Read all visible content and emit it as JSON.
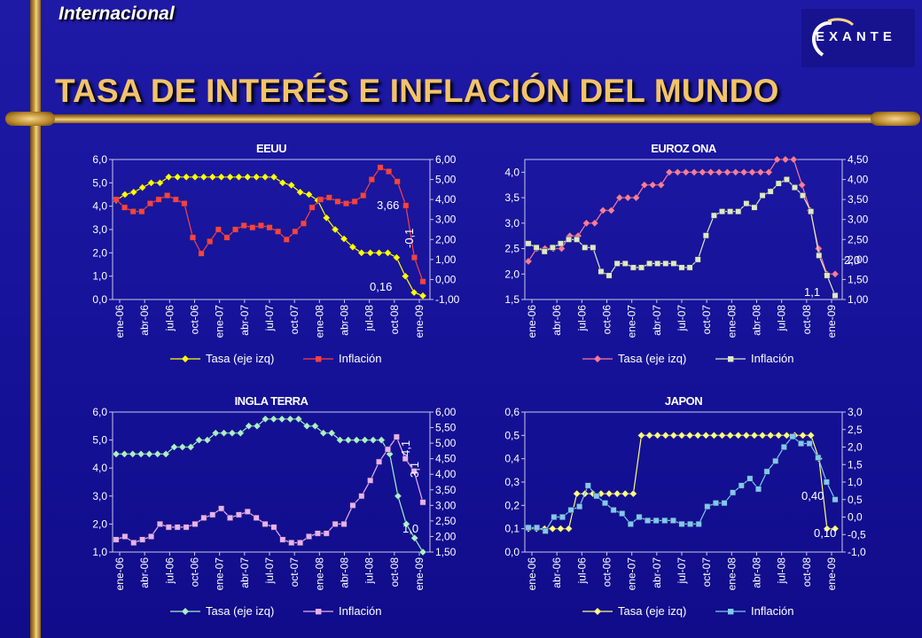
{
  "header": {
    "section_label": "Internacional",
    "title": "TASA DE INTERÉS E INFLACIÓN DEL MUNDO",
    "logo_text": "EXANTE"
  },
  "months": [
    "ene-06",
    "abr-06",
    "jul-06",
    "oct-06",
    "ene-07",
    "abr-07",
    "jul-07",
    "oct-07",
    "ene-08",
    "abr-08",
    "jul-08",
    "oct-08",
    "ene-09"
  ],
  "chart_data": [
    {
      "type": "line",
      "title": "EEUU",
      "ylim_left": [
        0,
        6
      ],
      "yticks_left": [
        "0,0",
        "1,0",
        "2,0",
        "3,0",
        "4,0",
        "5,0",
        "6,0"
      ],
      "ylim_right": [
        -1,
        6
      ],
      "yticks_right": [
        "-1,00",
        "0,00",
        "1,00",
        "2,00",
        "3,00",
        "4,00",
        "5,00",
        "6,00"
      ],
      "series": [
        {
          "name": "Tasa (eje izq)",
          "axis": "left",
          "color": "#ffff00",
          "marker": "diamond",
          "values": [
            4.25,
            4.5,
            4.6,
            4.8,
            5.0,
            5.0,
            5.25,
            5.25,
            5.25,
            5.25,
            5.25,
            5.25,
            5.25,
            5.25,
            5.25,
            5.25,
            5.25,
            5.25,
            5.25,
            5.0,
            4.9,
            4.6,
            4.5,
            4.25,
            3.5,
            3.0,
            2.6,
            2.25,
            2.0,
            2.0,
            2.0,
            2.0,
            1.8,
            1.0,
            0.3,
            0.16
          ]
        },
        {
          "name": "Inflación",
          "axis": "right",
          "color": "#ff4040",
          "marker": "square",
          "values": [
            4.0,
            3.6,
            3.4,
            3.4,
            3.8,
            4.0,
            4.2,
            4.0,
            3.8,
            2.1,
            1.3,
            1.9,
            2.5,
            2.1,
            2.5,
            2.7,
            2.6,
            2.7,
            2.6,
            2.4,
            2.0,
            2.4,
            2.8,
            3.6,
            4.0,
            4.1,
            3.9,
            3.8,
            3.9,
            4.2,
            5.0,
            5.6,
            5.4,
            4.9,
            3.7,
            1.1,
            -0.1
          ]
        }
      ],
      "annotations": [
        "3,66",
        "0,16",
        "-0,1"
      ]
    },
    {
      "type": "line",
      "title": "EUROZ ONA",
      "ylim_left": [
        1.5,
        4.25
      ],
      "yticks_left": [
        "1,5",
        "2,0",
        "2,5",
        "3,0",
        "3,5",
        "4,0"
      ],
      "ylim_right": [
        1,
        4.5
      ],
      "yticks_right": [
        "1,00",
        "1,50",
        "2,00",
        "2,50",
        "3,00",
        "3,50",
        "4,00",
        "4,50"
      ],
      "series": [
        {
          "name": "Tasa (eje izq)",
          "axis": "left",
          "color": "#ff7a9a",
          "marker": "diamond",
          "values": [
            2.25,
            2.5,
            2.5,
            2.5,
            2.5,
            2.75,
            2.75,
            3.0,
            3.0,
            3.25,
            3.25,
            3.5,
            3.5,
            3.5,
            3.75,
            3.75,
            3.75,
            4.0,
            4.0,
            4.0,
            4.0,
            4.0,
            4.0,
            4.0,
            4.0,
            4.0,
            4.0,
            4.0,
            4.0,
            4.0,
            4.25,
            4.25,
            4.25,
            3.75,
            3.25,
            2.5,
            2.0,
            2.0
          ]
        },
        {
          "name": "Inflación",
          "axis": "right",
          "color": "#dde8c8",
          "marker": "square",
          "values": [
            2.4,
            2.3,
            2.2,
            2.3,
            2.4,
            2.5,
            2.5,
            2.3,
            2.3,
            1.7,
            1.6,
            1.9,
            1.9,
            1.8,
            1.8,
            1.9,
            1.9,
            1.9,
            1.9,
            1.8,
            1.8,
            2.0,
            2.6,
            3.1,
            3.2,
            3.2,
            3.2,
            3.4,
            3.3,
            3.6,
            3.7,
            3.9,
            4.0,
            3.8,
            3.6,
            3.2,
            2.1,
            1.6,
            1.1
          ]
        }
      ],
      "annotations": [
        "2,0",
        "1,1"
      ]
    },
    {
      "type": "line",
      "title": "INGLA TERRA",
      "ylim_left": [
        1,
        6
      ],
      "yticks_left": [
        "1,0",
        "2,0",
        "3,0",
        "4,0",
        "5,0",
        "6,0"
      ],
      "ylim_right": [
        1.5,
        6
      ],
      "yticks_right": [
        "1,50",
        "2,00",
        "2,50",
        "3,00",
        "3,50",
        "4,00",
        "4,50",
        "5,00",
        "5,50",
        "6,00"
      ],
      "series": [
        {
          "name": "Tasa (eje izq)",
          "axis": "left",
          "color": "#a8f0c8",
          "marker": "diamond",
          "values": [
            4.5,
            4.5,
            4.5,
            4.5,
            4.5,
            4.5,
            4.5,
            4.75,
            4.75,
            4.75,
            5.0,
            5.0,
            5.25,
            5.25,
            5.25,
            5.25,
            5.5,
            5.5,
            5.75,
            5.75,
            5.75,
            5.75,
            5.75,
            5.5,
            5.5,
            5.25,
            5.25,
            5.0,
            5.0,
            5.0,
            5.0,
            5.0,
            5.0,
            4.5,
            3.0,
            2.0,
            1.5,
            1.0
          ]
        },
        {
          "name": "Inflación",
          "axis": "right",
          "color": "#e8b0f0",
          "marker": "square",
          "values": [
            1.9,
            2.0,
            1.8,
            1.9,
            2.0,
            2.4,
            2.3,
            2.3,
            2.3,
            2.4,
            2.6,
            2.7,
            2.9,
            2.6,
            2.7,
            2.8,
            2.6,
            2.4,
            2.3,
            1.9,
            1.8,
            1.8,
            2.0,
            2.1,
            2.1,
            2.4,
            2.4,
            3.0,
            3.3,
            3.8,
            4.4,
            4.8,
            5.2,
            4.5,
            4.1,
            3.1
          ]
        }
      ],
      "annotations": [
        "4,1",
        "3,1",
        "1,0"
      ]
    },
    {
      "type": "line",
      "title": "JAPON",
      "ylim_left": [
        0,
        0.6
      ],
      "yticks_left": [
        "0,0",
        "0,1",
        "0,2",
        "0,3",
        "0,4",
        "0,5",
        "0,6"
      ],
      "ylim_right": [
        -1,
        3
      ],
      "yticks_right": [
        "-1,0",
        "-0,5",
        "0,0",
        "0,5",
        "1,0",
        "1,5",
        "2,0",
        "2,5",
        "3,0"
      ],
      "series": [
        {
          "name": "Tasa (eje izq)",
          "axis": "left",
          "color": "#ffff80",
          "marker": "diamond",
          "values": [
            0.1,
            0.1,
            0.1,
            0.1,
            0.1,
            0.1,
            0.25,
            0.25,
            0.25,
            0.25,
            0.25,
            0.25,
            0.25,
            0.25,
            0.5,
            0.5,
            0.5,
            0.5,
            0.5,
            0.5,
            0.5,
            0.5,
            0.5,
            0.5,
            0.5,
            0.5,
            0.5,
            0.5,
            0.5,
            0.5,
            0.5,
            0.5,
            0.5,
            0.5,
            0.5,
            0.5,
            0.4,
            0.1,
            0.1
          ]
        },
        {
          "name": "Inflación",
          "axis": "right",
          "color": "#80c8f0",
          "marker": "square",
          "values": [
            -0.3,
            -0.3,
            -0.4,
            0.0,
            0.0,
            0.2,
            0.3,
            0.9,
            0.6,
            0.4,
            0.2,
            0.1,
            -0.2,
            0.0,
            -0.1,
            -0.1,
            -0.1,
            -0.1,
            -0.2,
            -0.2,
            -0.2,
            0.3,
            0.4,
            0.4,
            0.7,
            0.9,
            1.1,
            0.8,
            1.3,
            1.6,
            2.0,
            2.3,
            2.1,
            2.1,
            1.7,
            1.0,
            0.5
          ]
        }
      ],
      "annotations": [
        "0,40",
        "0,10"
      ]
    }
  ]
}
